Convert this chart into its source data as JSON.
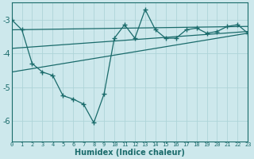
{
  "xlabel": "Humidex (Indice chaleur)",
  "ylabel": "",
  "bg_color": "#cde8ec",
  "grid_color": "#aed4d8",
  "line_color": "#1a6b6b",
  "x_data": [
    0,
    1,
    2,
    3,
    4,
    5,
    6,
    7,
    8,
    9,
    10,
    11,
    12,
    13,
    14,
    15,
    16,
    17,
    18,
    19,
    20,
    21,
    22,
    23
  ],
  "y_main": [
    -3.0,
    -3.3,
    -4.3,
    -4.55,
    -4.65,
    -5.25,
    -5.35,
    -5.5,
    -6.05,
    -5.2,
    -3.55,
    -3.15,
    -3.55,
    -2.7,
    -3.3,
    -3.55,
    -3.55,
    -3.3,
    -3.25,
    -3.4,
    -3.35,
    -3.2,
    -3.15,
    -3.4
  ],
  "ylim": [
    -6.6,
    -2.5
  ],
  "xlim": [
    0,
    23
  ],
  "yticks": [
    -6,
    -5,
    -4,
    -3
  ],
  "xticks": [
    0,
    1,
    2,
    3,
    4,
    5,
    6,
    7,
    8,
    9,
    10,
    11,
    12,
    13,
    14,
    15,
    16,
    17,
    18,
    19,
    20,
    21,
    22,
    23
  ],
  "trend1_x": [
    0,
    23
  ],
  "trend1_y": [
    -3.3,
    -3.2
  ],
  "trend2_x": [
    0,
    23
  ],
  "trend2_y": [
    -3.85,
    -3.35
  ],
  "trend3_x": [
    0,
    23
  ],
  "trend3_y": [
    -4.55,
    -3.4
  ]
}
